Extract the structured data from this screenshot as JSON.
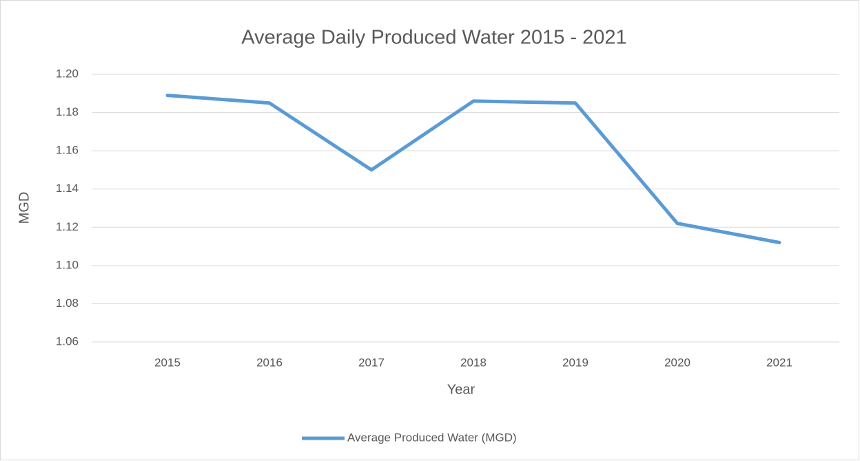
{
  "chart_data": {
    "type": "line",
    "title": "Average Daily Produced Water 2015 - 2021",
    "x_label": "Year",
    "y_label": "MGD",
    "categories": [
      "2015",
      "2016",
      "2017",
      "2018",
      "2019",
      "2020",
      "2021"
    ],
    "series": [
      {
        "name": "Average Produced Water (MGD)",
        "color": "#5b9bd5",
        "values": [
          1.189,
          1.185,
          1.15,
          1.186,
          1.185,
          1.122,
          1.112
        ]
      }
    ],
    "ylim": [
      1.06,
      1.2
    ],
    "yticks": [
      1.06,
      1.08,
      {
        "value": 1.1,
        "label": "1.10"
      },
      1.12,
      1.14,
      1.16,
      1.18,
      {
        "value": 1.2,
        "label": "1.20"
      }
    ],
    "grid": true,
    "legend": "bottom"
  }
}
